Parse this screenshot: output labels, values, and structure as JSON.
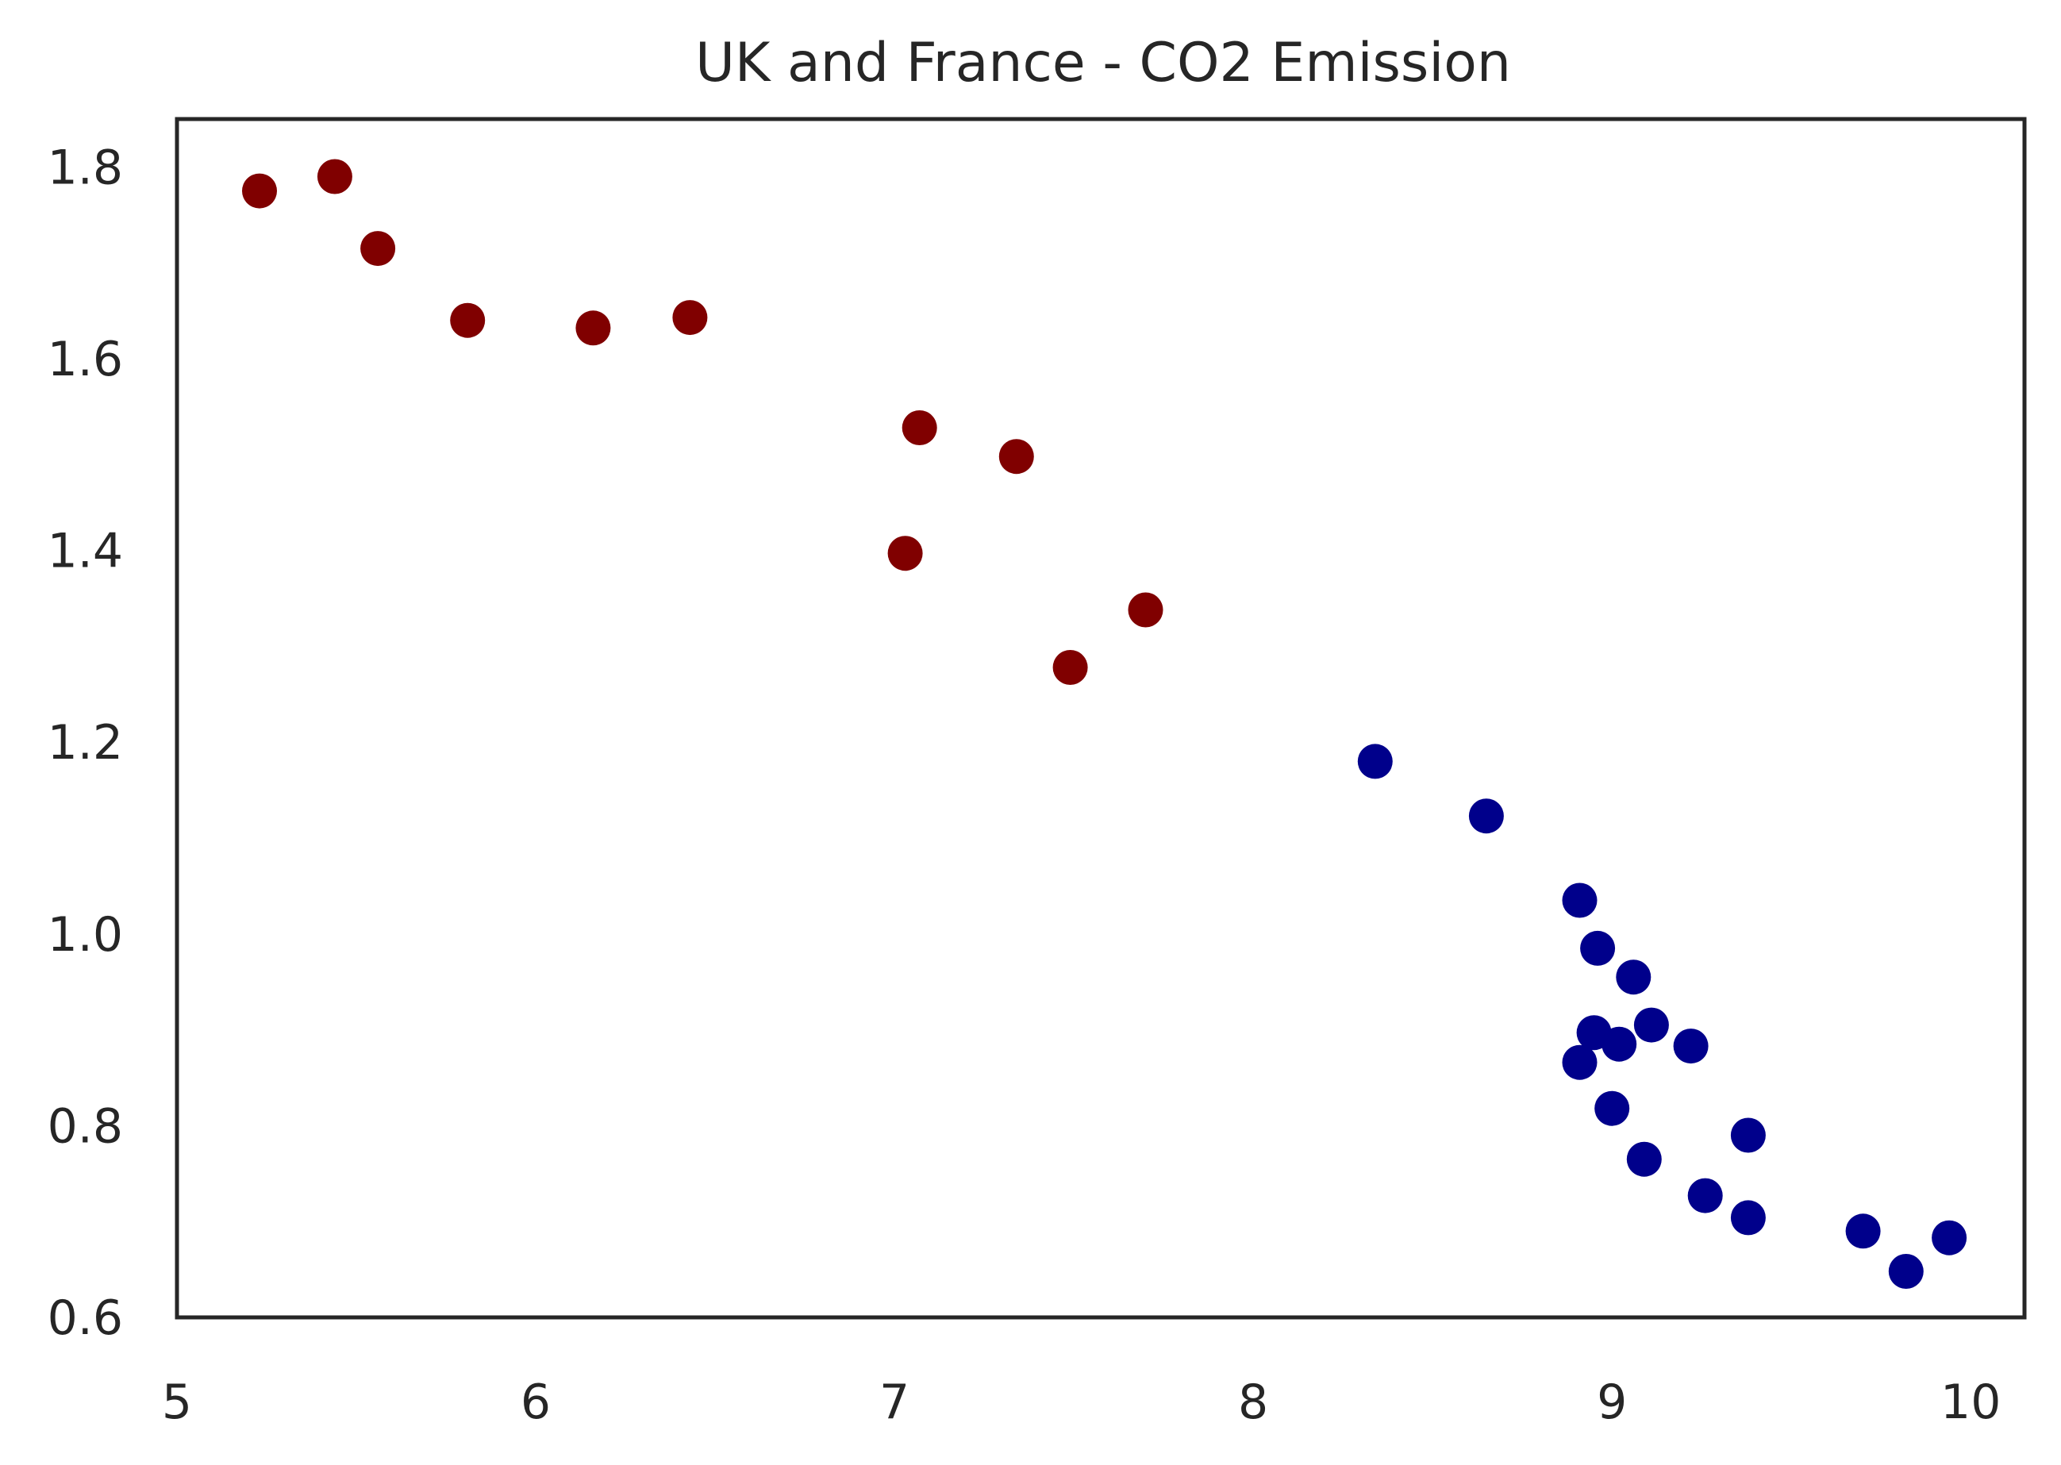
{
  "chart_data": {
    "type": "scatter",
    "title": "UK and France - CO2 Emission",
    "xlabel": "",
    "ylabel": "",
    "xlim": [
      5.0,
      10.15
    ],
    "ylim": [
      0.6,
      1.85
    ],
    "grid": false,
    "x_ticks": [
      "5",
      "6",
      "7",
      "8",
      "9",
      "10"
    ],
    "y_ticks": [
      "0.6",
      "0.8",
      "1.0",
      "1.2",
      "1.4",
      "1.6",
      "1.8"
    ],
    "series": [
      {
        "color": "#800000",
        "points": [
          [
            5.23,
            1.775
          ],
          [
            5.44,
            1.79
          ],
          [
            5.56,
            1.715
          ],
          [
            5.81,
            1.64
          ],
          [
            6.16,
            1.632
          ],
          [
            6.43,
            1.643
          ],
          [
            7.07,
            1.528
          ],
          [
            7.34,
            1.498
          ],
          [
            7.03,
            1.397
          ],
          [
            7.7,
            1.338
          ],
          [
            7.49,
            1.278
          ]
        ]
      },
      {
        "color": "#00008b",
        "points": [
          [
            8.34,
            1.18
          ],
          [
            8.65,
            1.123
          ],
          [
            8.91,
            1.035
          ],
          [
            8.96,
            0.985
          ],
          [
            9.06,
            0.955
          ],
          [
            8.95,
            0.897
          ],
          [
            9.02,
            0.885
          ],
          [
            9.11,
            0.905
          ],
          [
            9.22,
            0.883
          ],
          [
            8.91,
            0.866
          ],
          [
            9.0,
            0.818
          ],
          [
            9.09,
            0.765
          ],
          [
            9.38,
            0.79
          ],
          [
            9.26,
            0.727
          ],
          [
            9.38,
            0.704
          ],
          [
            9.7,
            0.69
          ],
          [
            9.82,
            0.648
          ],
          [
            9.94,
            0.683
          ]
        ]
      }
    ]
  }
}
